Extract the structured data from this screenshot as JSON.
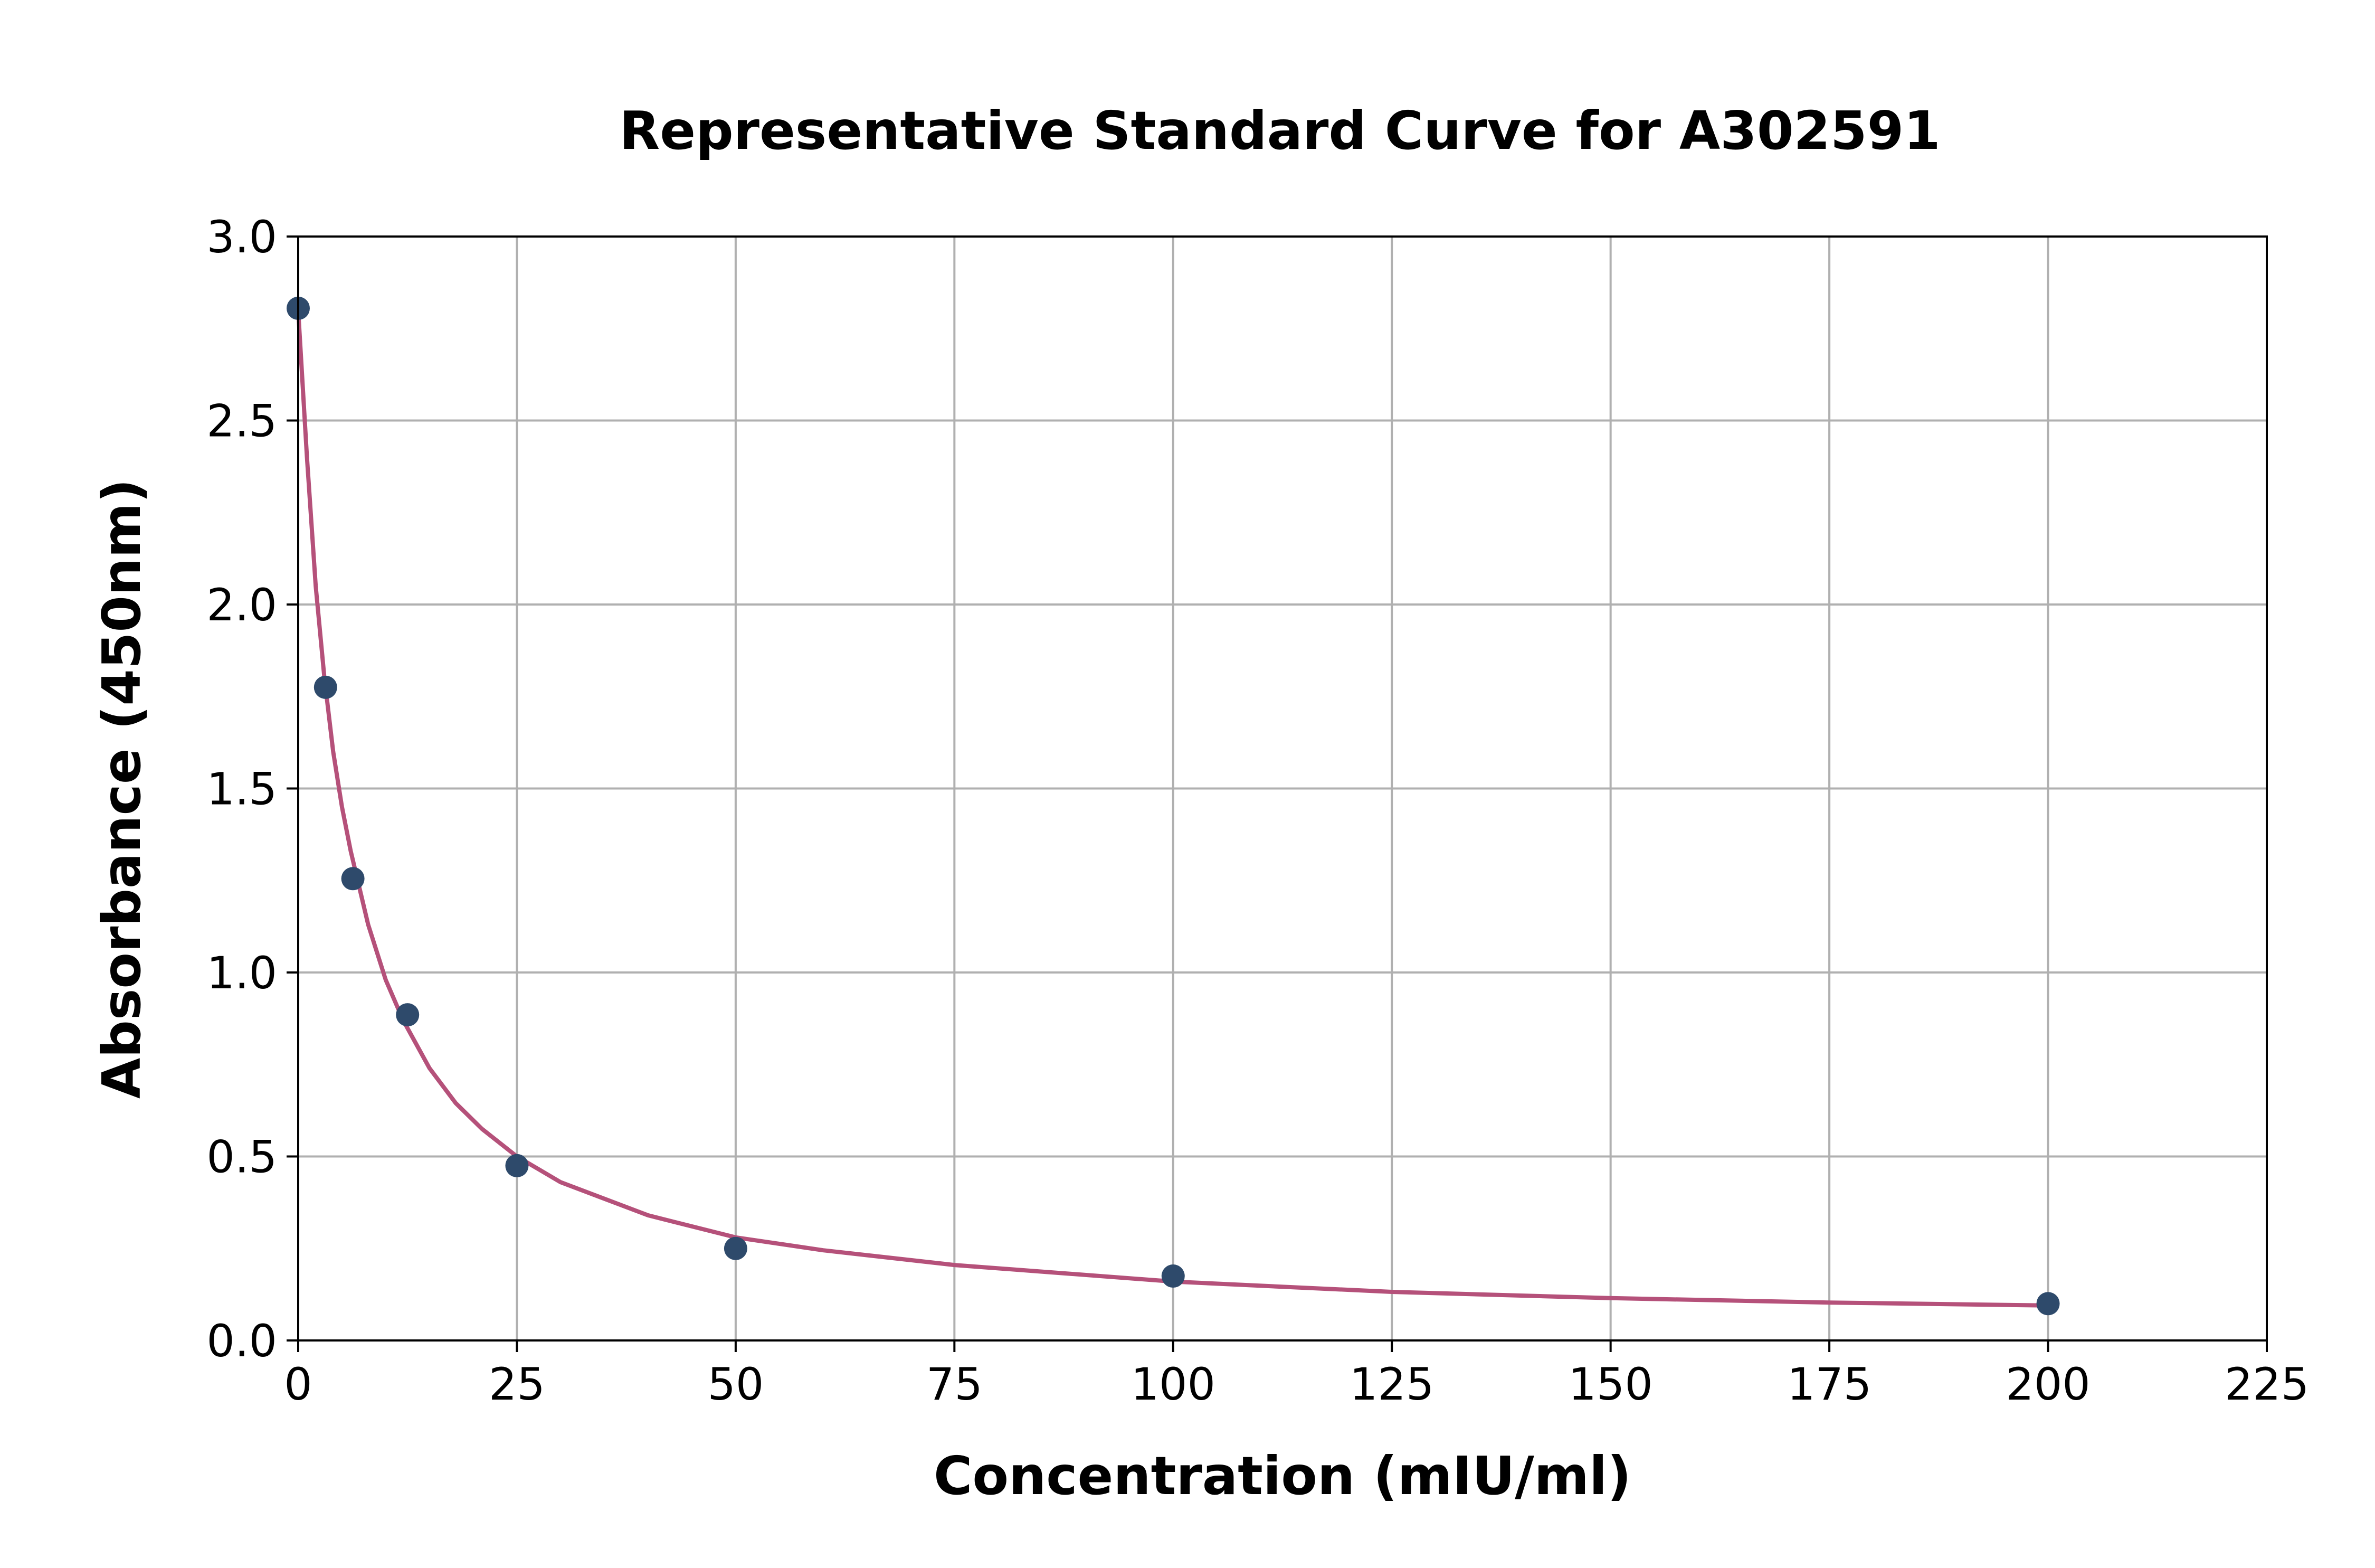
{
  "chart_data": {
    "type": "scatter",
    "title": "Representative Standard Curve for A302591",
    "xlabel": "Concentration (mIU/ml)",
    "ylabel": "Absorbance (450nm)",
    "xlim": [
      0,
      225
    ],
    "ylim": [
      0,
      3.0
    ],
    "x_ticks": [
      "0",
      "25",
      "50",
      "75",
      "100",
      "125",
      "150",
      "175",
      "200",
      "225"
    ],
    "y_ticks": [
      "0.0",
      "0.5",
      "1.0",
      "1.5",
      "2.0",
      "2.5",
      "3.0"
    ],
    "grid": true,
    "series": [
      {
        "type": "scatter",
        "color": "#2e4a6b",
        "x": [
          0,
          3.125,
          6.25,
          12.5,
          25,
          50,
          100,
          200
        ],
        "y": [
          2.805,
          1.775,
          1.255,
          0.885,
          0.475,
          0.25,
          0.175,
          0.1
        ]
      },
      {
        "type": "line",
        "color": "#b5517a",
        "x": [
          0,
          1,
          2,
          3,
          4,
          5,
          6,
          8,
          10,
          12,
          15,
          18,
          21,
          25,
          30,
          40,
          50,
          60,
          75,
          100,
          125,
          150,
          175,
          200
        ],
        "y": [
          2.8,
          2.4,
          2.05,
          1.8,
          1.6,
          1.45,
          1.33,
          1.13,
          0.98,
          0.87,
          0.74,
          0.645,
          0.575,
          0.5,
          0.43,
          0.34,
          0.28,
          0.245,
          0.205,
          0.16,
          0.132,
          0.115,
          0.103,
          0.095
        ]
      }
    ]
  }
}
